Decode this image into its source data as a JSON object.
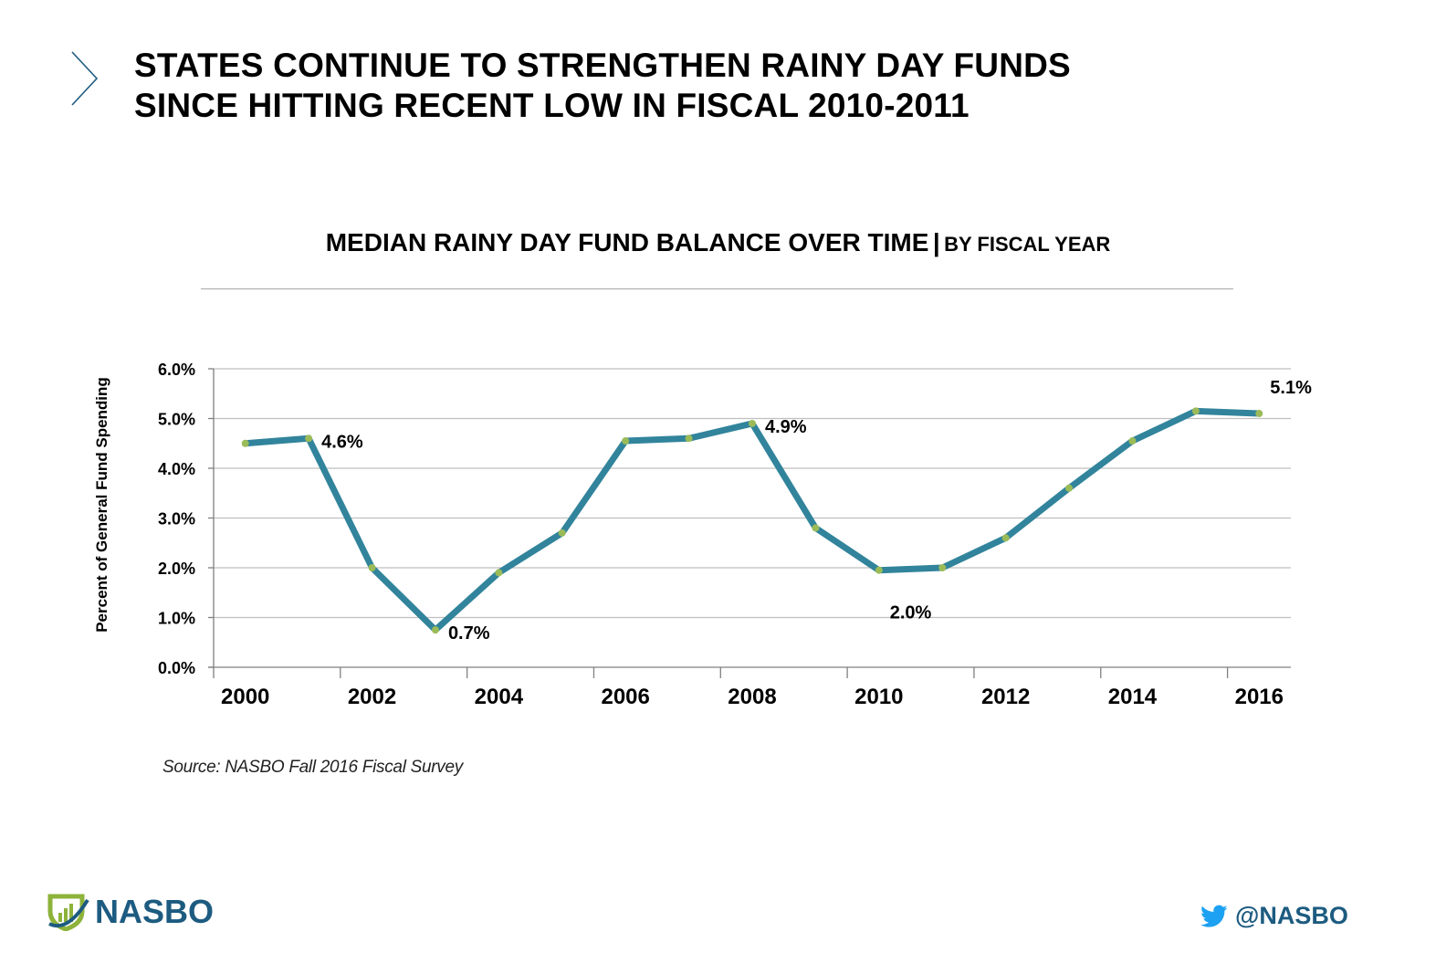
{
  "slide": {
    "title_lines": [
      "STATES CONTINUE TO STRENGTHEN RAINY DAY FUNDS",
      "SINCE HITTING RECENT LOW IN FISCAL 2010-2011"
    ],
    "source": "Source: NASBO Fall 2016  Fiscal Survey",
    "logo_text": "NASBO",
    "twitter_handle": "@NASBO",
    "icons": {
      "chevron": "chevron-right-icon",
      "logo": "nasbo-logo-icon",
      "twitter": "twitter-bird-icon"
    }
  },
  "colors": {
    "line": "#31849B",
    "marker": "#9BBB59",
    "grid": "#BFBFBF",
    "axis": "#808080",
    "accent": "#1D5B80",
    "twitter": "#1DA1F2"
  },
  "chart_data": {
    "type": "line",
    "title": "MEDIAN RAINY DAY FUND BALANCE OVER TIME",
    "title_separator": "|",
    "subtitle": "BY FISCAL YEAR",
    "xlabel": "",
    "ylabel": "Percent of General Fund Spending",
    "ylim": [
      0,
      6
    ],
    "yticks": [
      0,
      1,
      2,
      3,
      4,
      5,
      6
    ],
    "ytick_labels": [
      "0.0%",
      "1.0%",
      "2.0%",
      "3.0%",
      "4.0%",
      "5.0%",
      "6.0%"
    ],
    "x": [
      2000,
      2001,
      2002,
      2003,
      2004,
      2005,
      2006,
      2007,
      2008,
      2009,
      2010,
      2011,
      2012,
      2013,
      2014,
      2015,
      2016
    ],
    "xtick_labels": [
      "2000",
      "2002",
      "2004",
      "2006",
      "2008",
      "2010",
      "2012",
      "2014",
      "2016"
    ],
    "grid": "horizontal",
    "legend": "none",
    "series": [
      {
        "name": "Median Rainy Day Fund Balance",
        "values": [
          4.5,
          4.6,
          2.0,
          0.75,
          1.9,
          2.7,
          4.55,
          4.6,
          4.9,
          2.8,
          1.95,
          2.0,
          2.6,
          3.6,
          4.55,
          5.15,
          5.1
        ]
      }
    ],
    "annotations": [
      {
        "year": 2001,
        "text": "4.6%",
        "placement": "right"
      },
      {
        "year": 2003,
        "text": "0.7%",
        "placement": "below-right"
      },
      {
        "year": 2008,
        "text": "4.9%",
        "placement": "right"
      },
      {
        "year": 2010.5,
        "text": "2.0%",
        "placement": "below"
      },
      {
        "year": 2016,
        "text": "5.1%",
        "placement": "above-right"
      }
    ]
  }
}
